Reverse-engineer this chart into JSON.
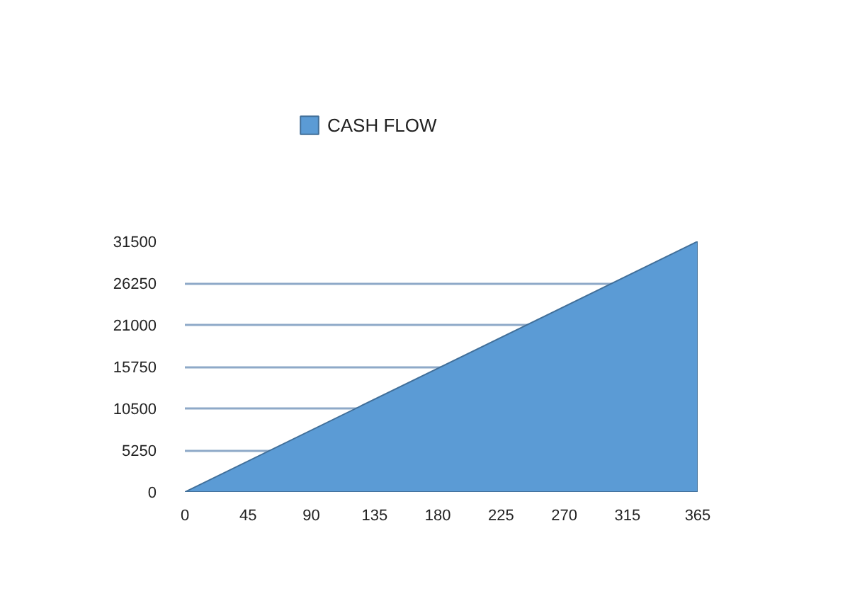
{
  "chart_data": {
    "type": "area",
    "x": [
      0,
      365
    ],
    "series": [
      {
        "name": "CASH FLOW",
        "color": "#5b9bd5",
        "values": [
          0,
          31500
        ]
      }
    ],
    "xlim": [
      0,
      365
    ],
    "xticks": [
      0,
      45,
      90,
      135,
      180,
      225,
      270,
      315,
      365
    ],
    "ylim": [
      0,
      31500
    ],
    "yticks": [
      0,
      5250,
      10500,
      15750,
      21000,
      26250,
      31500
    ],
    "grid": "y",
    "legend": "top"
  }
}
